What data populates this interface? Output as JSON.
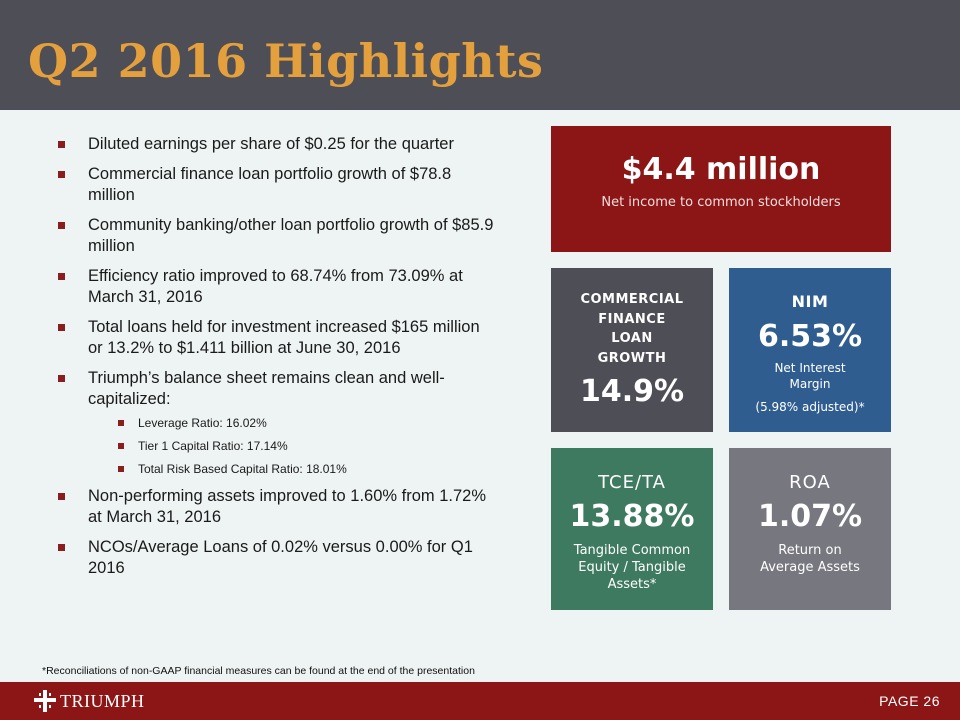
{
  "title": "Q2 2016 Highlights",
  "bullets": [
    {
      "text": "Diluted earnings per share of $0.25 for the quarter"
    },
    {
      "text": "Commercial finance loan portfolio growth of $78.8 million"
    },
    {
      "text": "Community banking/other loan portfolio growth of $85.9 million"
    },
    {
      "text": "Efficiency ratio improved to 68.74% from 73.09% at March 31, 2016"
    },
    {
      "text": "Total loans held for investment increased $165 million or 13.2% to $1.411 billion at June 30, 2016"
    },
    {
      "text": "Triumph’s balance sheet remains clean and well-capitalized:",
      "sub": [
        "Leverage Ratio: 16.02%",
        "Tier 1 Capital Ratio: 17.14%",
        "Total Risk Based Capital Ratio: 18.01%"
      ]
    },
    {
      "text": "Non-performing assets improved to 1.60% from 1.72% at March 31, 2016"
    },
    {
      "text": "NCOs/Average Loans of 0.02% versus 0.00% for Q1 2016"
    }
  ],
  "cards": {
    "net_income": {
      "value": "$4.4 million",
      "caption": "Net income to common stockholders"
    },
    "commercial": {
      "label_lines": [
        "COMMERCIAL",
        "FINANCE",
        "LOAN",
        "GROWTH"
      ],
      "value": "14.9%"
    },
    "nim": {
      "label": "NIM",
      "value": "6.53%",
      "caption_lines": [
        "Net Interest",
        "Margin"
      ],
      "note": "(5.98% adjusted)*"
    },
    "tce": {
      "label": "TCE/TA",
      "value": "13.88%",
      "caption_lines": [
        "Tangible Common",
        "Equity / Tangible",
        "Assets*"
      ]
    },
    "roa": {
      "label": "ROA",
      "value": "1.07%",
      "caption_lines": [
        "Return on",
        "Average Assets"
      ]
    }
  },
  "footnote": "*Reconciliations of non-GAAP financial measures can be found at the end of the presentation",
  "footer": {
    "logo_text": "TRIUMPH",
    "page_label": "PAGE 26"
  },
  "colors": {
    "header_bg": "#4e4e57",
    "title": "#e4a03c",
    "brand_red": "#8c1616",
    "nim_blue": "#2f5d8f",
    "tce_green": "#3e7a60",
    "roa_gray": "#77777f"
  }
}
